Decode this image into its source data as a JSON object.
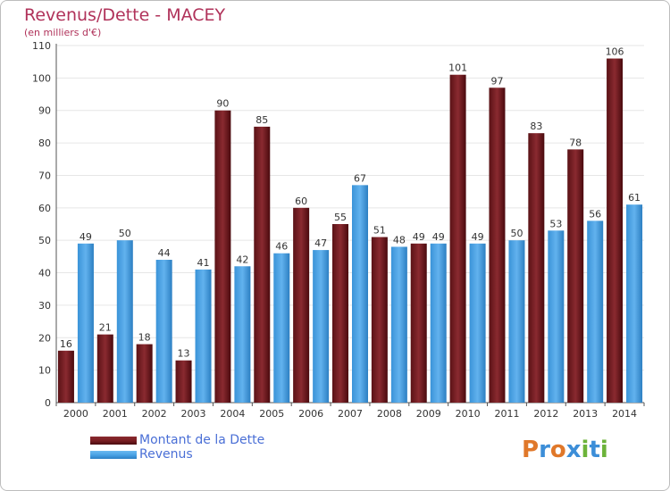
{
  "title": "Revenus/Dette - MACEY",
  "subtitle": "(en milliers d'€)",
  "legend": {
    "debt_label": "Montant de la Dette",
    "revenue_label": "Revenus"
  },
  "logo": {
    "text": "Proxiti",
    "letters": [
      "P",
      "r",
      "o",
      "x",
      "i",
      "t",
      "i"
    ]
  },
  "colors": {
    "title": "#b0325a",
    "debt": "#7a1e22",
    "revenue": "#4aa3e6",
    "legend_text": "#4a6fd6",
    "grid": "#e6e6e6"
  },
  "chart_data": {
    "type": "bar",
    "categories": [
      "2000",
      "2001",
      "2002",
      "2003",
      "2004",
      "2005",
      "2006",
      "2007",
      "2008",
      "2009",
      "2010",
      "2011",
      "2012",
      "2013",
      "2014"
    ],
    "series": [
      {
        "name": "Montant de la Dette",
        "values": [
          16,
          21,
          18,
          13,
          90,
          85,
          60,
          55,
          51,
          49,
          101,
          97,
          83,
          78,
          106
        ]
      },
      {
        "name": "Revenus",
        "values": [
          49,
          50,
          44,
          41,
          42,
          46,
          47,
          67,
          48,
          49,
          49,
          50,
          53,
          56,
          61
        ]
      }
    ],
    "yticks": [
      0,
      10,
      20,
      30,
      40,
      50,
      60,
      70,
      80,
      90,
      100,
      110
    ],
    "ylim": [
      0,
      110
    ],
    "grid": true,
    "legend_position": "bottom-left"
  }
}
